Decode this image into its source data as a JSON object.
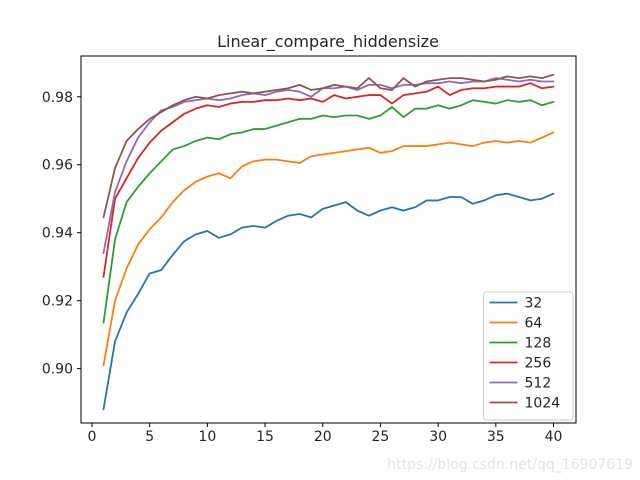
{
  "figure": {
    "background": "#ffffff",
    "watermark": "https://blog.csdn.net/qq_16907619",
    "watermark_color": "#e2e2e2"
  },
  "chart_data": {
    "type": "line",
    "title": "Linear_compare_hiddensize",
    "xlabel": "",
    "ylabel": "",
    "grid": false,
    "legend_position": "lower right",
    "xlim": [
      -0.95,
      41.95
    ],
    "ylim": [
      0.884,
      0.992
    ],
    "x_ticks": [
      0,
      5,
      10,
      15,
      20,
      25,
      30,
      35,
      40
    ],
    "y_ticks": [
      0.9,
      0.92,
      0.94,
      0.96,
      0.98
    ],
    "y_tick_labels": [
      "0.90",
      "0.92",
      "0.94",
      "0.96",
      "0.98"
    ],
    "x": [
      1,
      2,
      3,
      4,
      5,
      6,
      7,
      8,
      9,
      10,
      11,
      12,
      13,
      14,
      15,
      16,
      17,
      18,
      19,
      20,
      21,
      22,
      23,
      24,
      25,
      26,
      27,
      28,
      29,
      30,
      31,
      32,
      33,
      34,
      35,
      36,
      37,
      38,
      39,
      40
    ],
    "series": [
      {
        "name": "32",
        "color": "#1f77b4",
        "values": [
          0.888,
          0.908,
          0.9165,
          0.922,
          0.928,
          0.929,
          0.9335,
          0.9375,
          0.9395,
          0.9405,
          0.9385,
          0.9395,
          0.9415,
          0.942,
          0.9415,
          0.9435,
          0.945,
          0.9455,
          0.9445,
          0.947,
          0.948,
          0.949,
          0.9465,
          0.945,
          0.9465,
          0.9475,
          0.9465,
          0.9475,
          0.9495,
          0.9495,
          0.9505,
          0.9505,
          0.9485,
          0.9495,
          0.951,
          0.9515,
          0.9505,
          0.9495,
          0.95,
          0.9515
        ]
      },
      {
        "name": "64",
        "color": "#ff7f0e",
        "values": [
          0.901,
          0.92,
          0.9295,
          0.9365,
          0.941,
          0.9445,
          0.949,
          0.9525,
          0.955,
          0.9565,
          0.9575,
          0.956,
          0.9595,
          0.961,
          0.9615,
          0.9615,
          0.961,
          0.9605,
          0.9625,
          0.963,
          0.9635,
          0.964,
          0.9645,
          0.965,
          0.9635,
          0.964,
          0.9655,
          0.9655,
          0.9655,
          0.966,
          0.9665,
          0.966,
          0.9655,
          0.9665,
          0.967,
          0.9665,
          0.967,
          0.9665,
          0.968,
          0.9695
        ]
      },
      {
        "name": "128",
        "color": "#2ca02c",
        "values": [
          0.9135,
          0.938,
          0.949,
          0.9535,
          0.9575,
          0.961,
          0.9645,
          0.9655,
          0.967,
          0.968,
          0.9675,
          0.969,
          0.9695,
          0.9705,
          0.9705,
          0.9715,
          0.9725,
          0.9735,
          0.9735,
          0.9745,
          0.974,
          0.9745,
          0.9745,
          0.9735,
          0.9745,
          0.977,
          0.974,
          0.9765,
          0.9765,
          0.9775,
          0.9765,
          0.9775,
          0.979,
          0.9785,
          0.978,
          0.979,
          0.9785,
          0.979,
          0.9775,
          0.9785
        ]
      },
      {
        "name": "256",
        "color": "#d62728",
        "values": [
          0.927,
          0.95,
          0.956,
          0.962,
          0.9665,
          0.97,
          0.9725,
          0.975,
          0.9765,
          0.9775,
          0.977,
          0.978,
          0.9785,
          0.9785,
          0.979,
          0.979,
          0.9795,
          0.979,
          0.9795,
          0.9785,
          0.9805,
          0.9795,
          0.98,
          0.9805,
          0.9805,
          0.978,
          0.9805,
          0.981,
          0.9815,
          0.983,
          0.9805,
          0.982,
          0.9825,
          0.9825,
          0.983,
          0.983,
          0.983,
          0.984,
          0.9825,
          0.983
        ]
      },
      {
        "name": "512",
        "color": "#9467bd",
        "values": [
          0.934,
          0.952,
          0.961,
          0.968,
          0.9725,
          0.976,
          0.977,
          0.9785,
          0.979,
          0.9795,
          0.979,
          0.9795,
          0.9805,
          0.981,
          0.9805,
          0.9815,
          0.982,
          0.9815,
          0.98,
          0.9825,
          0.9825,
          0.983,
          0.982,
          0.9835,
          0.9835,
          0.9825,
          0.9835,
          0.9835,
          0.984,
          0.984,
          0.9845,
          0.984,
          0.9845,
          0.9845,
          0.9855,
          0.985,
          0.9845,
          0.985,
          0.9845,
          0.9845
        ]
      },
      {
        "name": "1024",
        "color": "#8c564b",
        "values": [
          0.9445,
          0.959,
          0.967,
          0.9705,
          0.9735,
          0.9755,
          0.9775,
          0.979,
          0.98,
          0.9795,
          0.9805,
          0.981,
          0.9815,
          0.981,
          0.9815,
          0.982,
          0.9825,
          0.9835,
          0.982,
          0.9825,
          0.9835,
          0.983,
          0.9825,
          0.9855,
          0.9825,
          0.982,
          0.9855,
          0.983,
          0.9845,
          0.985,
          0.9855,
          0.9855,
          0.985,
          0.9845,
          0.985,
          0.986,
          0.9855,
          0.986,
          0.9855,
          0.9865
        ]
      }
    ]
  },
  "style": {
    "axis_color": "#000000",
    "tick_label_color": "#262626",
    "title_color": "#262626",
    "legend_border_color": "#cccccc",
    "legend_bg": "#ffffff"
  }
}
